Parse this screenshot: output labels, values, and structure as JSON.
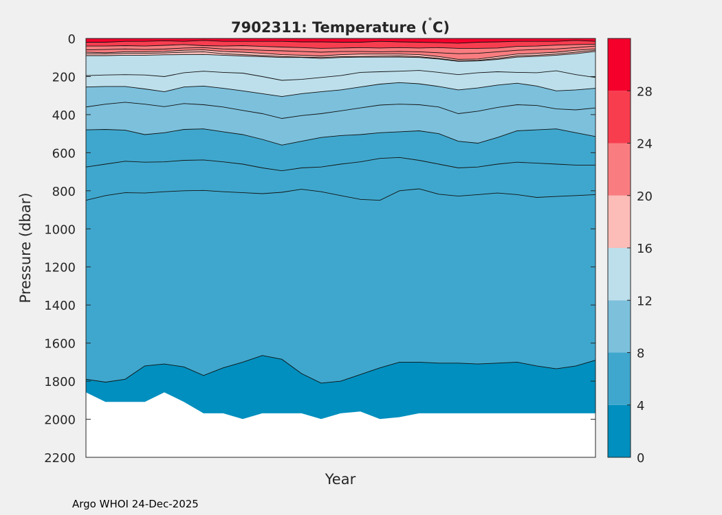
{
  "chart_data": {
    "type": "contour",
    "title": "7902311:  Temperature (",
    "title_degree": "˚",
    "title_unit": "C)",
    "xlabel": "Year",
    "ylabel": "Pressure (dbar)",
    "ylim": [
      0,
      2200
    ],
    "yticks": [
      0,
      200,
      400,
      600,
      800,
      1000,
      1200,
      1400,
      1600,
      1800,
      2000,
      2200
    ],
    "ytick_labels": [
      "0",
      "200",
      "400",
      "600",
      "800",
      "1000",
      "1200",
      "1400",
      "1600",
      "1800",
      "2000",
      "2200"
    ],
    "xlim": [
      0,
      26
    ],
    "profile_times": [
      0,
      1,
      2,
      3,
      4,
      5,
      6,
      7,
      8,
      9,
      10,
      11,
      12,
      13,
      14,
      15,
      16,
      17,
      18,
      19,
      20,
      21,
      22,
      23,
      24,
      25,
      26
    ],
    "max_depth": [
      1860,
      1910,
      1910,
      1910,
      1860,
      1910,
      1970,
      1970,
      2000,
      1970,
      1970,
      1970,
      2000,
      1970,
      1960,
      2000,
      1990,
      1970,
      1970,
      1970,
      1970,
      1970,
      1970,
      1970,
      1970,
      1970,
      1970
    ],
    "colorbar": {
      "ticks": [
        0,
        4,
        8,
        12,
        16,
        20,
        24,
        28
      ],
      "tick_labels": [
        "0",
        "4",
        "8",
        "12",
        "16",
        "20",
        "24",
        "28"
      ],
      "range": [
        0,
        32
      ],
      "bands": [
        {
          "range": [
            0,
            4
          ],
          "color": "#008fbe"
        },
        {
          "range": [
            4,
            8
          ],
          "color": "#3fa7cd"
        },
        {
          "range": [
            8,
            12
          ],
          "color": "#7cc0dc"
        },
        {
          "range": [
            12,
            16
          ],
          "color": "#bddfeb"
        },
        {
          "range": [
            16,
            20
          ],
          "color": "#fcbcb8"
        },
        {
          "range": [
            20,
            24
          ],
          "color": "#f97d80"
        },
        {
          "range": [
            24,
            28
          ],
          "color": "#f83d4f"
        },
        {
          "range": [
            28,
            32
          ],
          "color": "#f4002b"
        }
      ]
    },
    "contour_levels": [
      {
        "level": 26,
        "depths": [
          20,
          20,
          15,
          15,
          12,
          15,
          10,
          15,
          15,
          15,
          15,
          18,
          18,
          20,
          20,
          15,
          18,
          20,
          22,
          25,
          20,
          18,
          15,
          15,
          15,
          10,
          15
        ]
      },
      {
        "level": 24,
        "depths": [
          40,
          40,
          38,
          40,
          36,
          32,
          38,
          40,
          38,
          42,
          45,
          48,
          52,
          50,
          48,
          50,
          48,
          50,
          48,
          52,
          52,
          50,
          42,
          40,
          35,
          32,
          30
        ]
      },
      {
        "level": 22,
        "depths": [
          60,
          58,
          55,
          58,
          56,
          50,
          48,
          55,
          58,
          62,
          65,
          68,
          72,
          68,
          68,
          70,
          68,
          70,
          75,
          80,
          78,
          70,
          62,
          58,
          55,
          48,
          40
        ]
      },
      {
        "level": 20,
        "depths": [
          72,
          75,
          70,
          70,
          68,
          62,
          60,
          68,
          72,
          78,
          85,
          88,
          92,
          85,
          82,
          82,
          82,
          85,
          95,
          110,
          108,
          95,
          82,
          78,
          72,
          62,
          55
        ]
      },
      {
        "level": 18,
        "depths": [
          80,
          80,
          78,
          78,
          76,
          72,
          70,
          80,
          85,
          90,
          95,
          98,
          100,
          96,
          95,
          93,
          92,
          96,
          105,
          118,
          115,
          105,
          92,
          88,
          82,
          72,
          62
        ]
      },
      {
        "level": 16,
        "depths": [
          90,
          90,
          88,
          88,
          86,
          85,
          84,
          88,
          92,
          96,
          100,
          100,
          105,
          100,
          98,
          98,
          98,
          100,
          108,
          120,
          118,
          110,
          98,
          94,
          88,
          80,
          68
        ]
      },
      {
        "level": 14,
        "depths": [
          195,
          192,
          190,
          192,
          200,
          180,
          172,
          178,
          182,
          200,
          220,
          215,
          205,
          195,
          178,
          175,
          172,
          168,
          178,
          190,
          180,
          175,
          178,
          180,
          170,
          190,
          205
        ]
      },
      {
        "level": 12,
        "depths": [
          255,
          252,
          252,
          265,
          280,
          255,
          250,
          262,
          275,
          290,
          305,
          290,
          280,
          270,
          255,
          240,
          232,
          238,
          252,
          270,
          260,
          245,
          235,
          250,
          275,
          270,
          262
        ]
      },
      {
        "level": 10,
        "depths": [
          360,
          345,
          335,
          345,
          358,
          342,
          348,
          360,
          378,
          395,
          420,
          405,
          395,
          380,
          365,
          350,
          345,
          348,
          360,
          395,
          382,
          362,
          348,
          352,
          370,
          375,
          365
        ]
      },
      {
        "level": 8,
        "depths": [
          480,
          478,
          482,
          505,
          495,
          478,
          475,
          490,
          505,
          530,
          560,
          540,
          520,
          510,
          505,
          495,
          490,
          485,
          500,
          540,
          550,
          520,
          485,
          480,
          475,
          495,
          515
        ]
      },
      {
        "level": 6,
        "depths": [
          675,
          660,
          645,
          650,
          648,
          640,
          638,
          648,
          660,
          680,
          695,
          680,
          675,
          660,
          648,
          630,
          625,
          640,
          660,
          680,
          675,
          660,
          650,
          655,
          660,
          665,
          665
        ]
      },
      {
        "level": 5,
        "depths": [
          850,
          825,
          810,
          812,
          805,
          800,
          798,
          805,
          810,
          815,
          808,
          792,
          805,
          825,
          845,
          850,
          800,
          790,
          818,
          828,
          820,
          812,
          820,
          835,
          830,
          825,
          820
        ]
      },
      {
        "level": 4,
        "depths": [
          1790,
          1805,
          1790,
          1720,
          1710,
          1725,
          1770,
          1730,
          1700,
          1665,
          1685,
          1760,
          1810,
          1800,
          1765,
          1730,
          1700,
          1700,
          1705,
          1705,
          1710,
          1705,
          1700,
          1720,
          1735,
          1720,
          1690
        ]
      }
    ]
  },
  "footer": {
    "text": "Argo WHOI 24-Dec-2025"
  }
}
